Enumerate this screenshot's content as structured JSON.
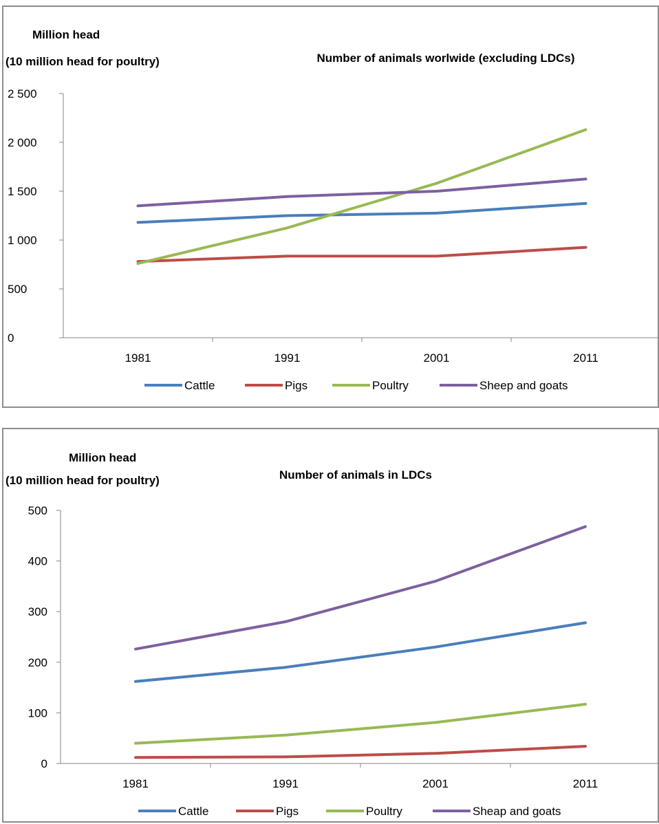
{
  "chart_data": [
    {
      "type": "line",
      "title": "Number of animals worlwide (excluding LDCs)",
      "ylabel_line1": "Million head",
      "ylabel_line2": "(10 million head for poultry)",
      "x": [
        "1981",
        "1991",
        "2001",
        "2011"
      ],
      "ylim": [
        0,
        2500
      ],
      "yticks": [
        0,
        500,
        1000,
        1500,
        2000,
        2500
      ],
      "ytick_labels": [
        "0",
        "500",
        "1 000",
        "1 500",
        "2 000",
        "2 500"
      ],
      "grid": false,
      "legend_position": "bottom",
      "series": [
        {
          "name": "Cattle",
          "color": "#4a7ebb",
          "values": [
            1180,
            1250,
            1275,
            1375
          ]
        },
        {
          "name": "Pigs",
          "color": "#be4b48",
          "values": [
            780,
            835,
            835,
            925
          ]
        },
        {
          "name": "Poultry",
          "color": "#98b954",
          "values": [
            760,
            1125,
            1580,
            2130
          ]
        },
        {
          "name": "Sheep and goats",
          "color": "#7d60a0",
          "values": [
            1350,
            1445,
            1500,
            1625
          ]
        }
      ]
    },
    {
      "type": "line",
      "title": "Number of animals in LDCs",
      "ylabel_line1": "Million head",
      "ylabel_line2": "(10 million head for poultry)",
      "x": [
        "1981",
        "1991",
        "2001",
        "2011"
      ],
      "ylim": [
        0,
        500
      ],
      "yticks": [
        0,
        100,
        200,
        300,
        400,
        500
      ],
      "ytick_labels": [
        "0",
        "100",
        "200",
        "300",
        "400",
        "500"
      ],
      "grid": false,
      "legend_position": "bottom",
      "series": [
        {
          "name": "Cattle",
          "color": "#4a7ebb",
          "values": [
            162,
            190,
            230,
            278
          ]
        },
        {
          "name": "Pigs",
          "color": "#be4b48",
          "values": [
            12,
            13,
            20,
            34
          ]
        },
        {
          "name": "Poultry",
          "color": "#98b954",
          "values": [
            40,
            56,
            81,
            117
          ]
        },
        {
          "name": "Sheap and goats",
          "color": "#7d60a0",
          "values": [
            226,
            280,
            360,
            468
          ]
        }
      ]
    }
  ]
}
